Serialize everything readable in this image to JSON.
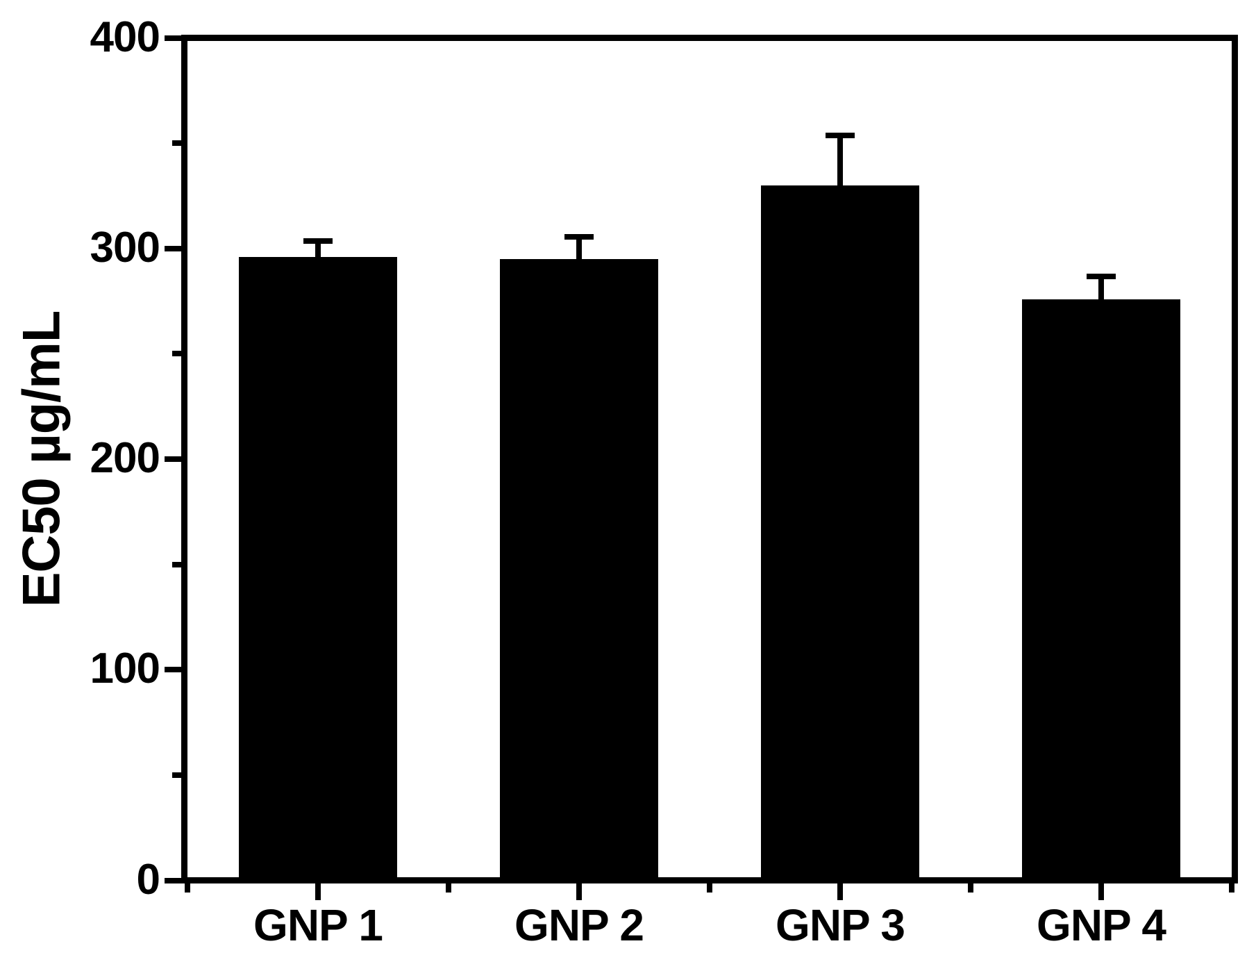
{
  "figure": {
    "background": "#ffffff",
    "foreground": "#000000"
  },
  "chart_data": {
    "type": "bar",
    "title": "",
    "categories": [
      "GNP 1",
      "GNP 2",
      "GNP 3",
      "GNP 4"
    ],
    "values": [
      296,
      295,
      330,
      276
    ],
    "errors": [
      9,
      12,
      25,
      12
    ],
    "error_direction": "plus-only",
    "xlabel": "",
    "ylabel": "EC50 µg/mL",
    "ylim": [
      0,
      400
    ],
    "yticks": [
      0,
      100,
      200,
      300,
      400
    ],
    "y_minor_ticks": [
      50,
      150,
      250,
      350
    ],
    "x_minor_ticks_at": "category-boundaries",
    "bar_color": "#000000",
    "axis_color": "#000000",
    "grid": false,
    "legend": null,
    "frame": "full-box"
  }
}
